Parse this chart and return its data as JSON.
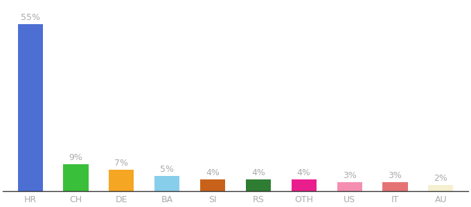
{
  "categories": [
    "HR",
    "CH",
    "DE",
    "BA",
    "SI",
    "RS",
    "OTH",
    "US",
    "IT",
    "AU"
  ],
  "values": [
    55,
    9,
    7,
    5,
    4,
    4,
    4,
    3,
    3,
    2
  ],
  "bar_colors": [
    "#4d6fd4",
    "#3abf3a",
    "#f5a623",
    "#87ceeb",
    "#c8621a",
    "#2e7d32",
    "#e91e8c",
    "#f48fb1",
    "#e57373",
    "#f5f0d0"
  ],
  "label_fontsize": 9,
  "tick_fontsize": 9,
  "ylim": [
    0,
    62
  ],
  "background_color": "#ffffff",
  "label_color": "#aaaaaa",
  "tick_color": "#aaaaaa"
}
